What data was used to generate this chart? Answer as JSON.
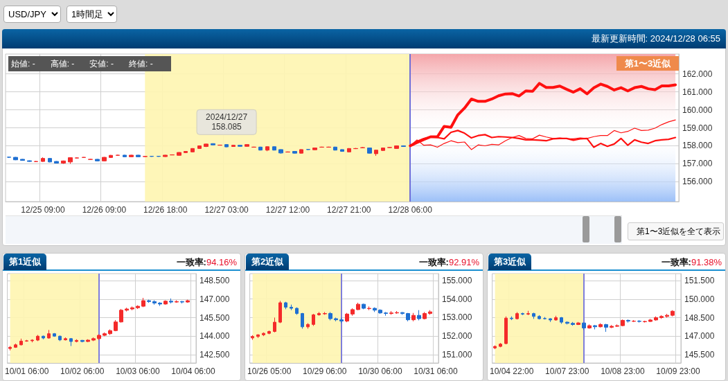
{
  "chart_data": [
    {
      "type": "candlestick",
      "title": "最新更新時間: 2024/12/28 06:55",
      "annotations": [
        "USD/JPY",
        "1時間足",
        "始値: -",
        "高値: -",
        "安値: -",
        "終値: -",
        "第1〜3近似",
        "第1〜3近似を全て表示",
        {
          "text": "2024/12/27\n158.085",
          "y": 158.085
        }
      ],
      "categories": [
        null,
        null,
        null,
        null,
        null,
        "12/25 09:00",
        null,
        null,
        null,
        null,
        null,
        null,
        null,
        null,
        "12/26 09:00",
        null,
        null,
        null,
        null,
        null,
        null,
        null,
        null,
        "12/26 18:00",
        null,
        null,
        null,
        null,
        null,
        null,
        null,
        null,
        "12/27 03:00",
        null,
        null,
        null,
        null,
        null,
        null,
        null,
        null,
        "12/27 12:00",
        null,
        null,
        null,
        null,
        null,
        null,
        null,
        null,
        "12/27 21:00",
        null,
        null,
        null,
        null,
        null,
        null,
        null,
        null,
        "12/28 06:00",
        null,
        null,
        null,
        null,
        null,
        null,
        null,
        null,
        null,
        null,
        null,
        null,
        null,
        null,
        null,
        null,
        null,
        null,
        null,
        null,
        null,
        null,
        null,
        null,
        null,
        null,
        null,
        null,
        null,
        null,
        null,
        null,
        null,
        null,
        null,
        null,
        null,
        null,
        null
      ],
      "series": [
        {
          "colors": [
            "#1e6fd2",
            "#1e6fd2",
            "#1e6fd2",
            "#1e6fd2",
            "#f42a2a",
            "#f42a2a",
            "#1e6fd2",
            "#1e6fd2",
            "#f42a2a",
            "#f42a2a",
            "#f42a2a",
            "#f42a2a",
            "#f42a2a",
            "#1e6fd2",
            "#f42a2a",
            "#f42a2a",
            "#f42a2a",
            "#1e6fd2",
            "#f42a2a",
            "#1e6fd2",
            "#f42a2a",
            "#1e6fd2",
            "#1e6fd2",
            "#f42a2a",
            "#f42a2a",
            "#f42a2a",
            "#f42a2a",
            "#f42a2a",
            "#f42a2a",
            "#f42a2a",
            "#1e6fd2",
            "#f42a2a",
            "#1e6fd2",
            "#f42a2a",
            "#1e6fd2",
            "#f42a2a",
            "#f42a2a",
            "#1e6fd2",
            "#f42a2a",
            "#1e6fd2",
            "#1e6fd2",
            "#f42a2a",
            "#1e6fd2",
            "#f42a2a",
            "#1e6fd2",
            "#f42a2a",
            "#f42a2a",
            "#f42a2a",
            "#1e6fd2",
            "#1e6fd2",
            "#f42a2a",
            "#f42a2a",
            "#f42a2a",
            "#1e6fd2",
            "#f42a2a",
            "#f42a2a",
            "#f42a2a",
            "#f42a2a",
            "#1e6fd2",
            null,
            null,
            null,
            null,
            null,
            null,
            null,
            null,
            null,
            null,
            null,
            null,
            null,
            null,
            null,
            null,
            null,
            null,
            null,
            null,
            null,
            null,
            null,
            null,
            null,
            null,
            null,
            null,
            null,
            null,
            null,
            null,
            null,
            null,
            null,
            null,
            null,
            null,
            null,
            null
          ],
          "ohlc": [
            [
              157.37,
              157.39,
              157.33,
              157.36
            ],
            [
              157.36,
              157.38,
              157.2,
              157.22
            ],
            [
              157.25,
              157.27,
              157.17,
              157.19
            ],
            [
              157.17,
              157.19,
              157.11,
              157.13
            ],
            [
              157.12,
              157.15,
              157.1,
              157.13
            ],
            [
              157.13,
              157.36,
              157.11,
              157.3
            ],
            [
              157.3,
              157.32,
              157.08,
              157.1
            ],
            [
              157.13,
              157.15,
              157.02,
              157.04
            ],
            [
              157.04,
              157.18,
              157.0,
              157.16
            ],
            [
              157.1,
              157.36,
              157.0,
              157.34
            ],
            [
              157.32,
              157.35,
              157.31,
              157.33
            ],
            [
              157.35,
              157.37,
              157.34,
              157.36
            ],
            [
              157.24,
              157.27,
              157.23,
              157.25
            ],
            [
              157.25,
              157.27,
              157.14,
              157.16
            ],
            [
              157.16,
              157.38,
              157.14,
              157.36
            ],
            [
              157.35,
              157.49,
              157.33,
              157.47
            ],
            [
              157.47,
              157.5,
              157.46,
              157.48
            ],
            [
              157.48,
              157.5,
              157.37,
              157.39
            ],
            [
              157.39,
              157.5,
              157.37,
              157.48
            ],
            [
              157.48,
              157.5,
              157.37,
              157.39
            ],
            [
              157.4,
              157.43,
              157.38,
              157.41
            ],
            [
              157.42,
              157.44,
              157.39,
              157.41
            ],
            [
              157.42,
              157.44,
              157.39,
              157.41
            ],
            [
              157.4,
              157.5,
              157.38,
              157.48
            ],
            [
              157.49,
              157.52,
              157.48,
              157.5
            ],
            [
              157.47,
              157.65,
              157.45,
              157.63
            ],
            [
              157.62,
              157.71,
              157.6,
              157.69
            ],
            [
              157.66,
              157.87,
              157.64,
              157.85
            ],
            [
              157.85,
              158.02,
              157.83,
              158.0
            ],
            [
              157.96,
              158.12,
              157.93,
              158.1
            ],
            [
              158.12,
              158.14,
              158.03,
              158.05
            ],
            [
              158.03,
              158.06,
              158.02,
              158.04
            ],
            [
              158.07,
              158.09,
              157.92,
              157.94
            ],
            [
              157.96,
              158.05,
              157.94,
              158.03
            ],
            [
              158.03,
              158.05,
              157.95,
              157.97
            ],
            [
              157.97,
              158.09,
              157.95,
              158.07
            ],
            [
              157.92,
              157.95,
              157.91,
              157.93
            ],
            [
              157.93,
              157.95,
              157.74,
              157.76
            ],
            [
              157.76,
              157.97,
              157.7,
              157.95
            ],
            [
              157.95,
              157.97,
              157.74,
              157.76
            ],
            [
              157.79,
              157.81,
              157.56,
              157.6
            ],
            [
              157.65,
              157.68,
              157.64,
              157.66
            ],
            [
              157.69,
              157.71,
              157.57,
              157.59
            ],
            [
              157.59,
              157.81,
              157.57,
              157.79
            ],
            [
              157.8,
              157.82,
              157.77,
              157.79
            ],
            [
              157.78,
              157.9,
              157.76,
              157.88
            ],
            [
              157.92,
              157.95,
              157.91,
              157.93
            ],
            [
              157.92,
              157.95,
              157.91,
              157.93
            ],
            [
              157.93,
              157.95,
              157.74,
              157.76
            ],
            [
              157.79,
              157.81,
              157.67,
              157.69
            ],
            [
              157.66,
              157.87,
              157.64,
              157.85
            ],
            [
              157.84,
              157.88,
              157.82,
              157.85
            ],
            [
              157.89,
              157.93,
              157.87,
              157.9
            ],
            [
              157.88,
              157.9,
              157.57,
              157.59
            ],
            [
              157.56,
              157.78,
              157.44,
              157.76
            ],
            [
              157.74,
              157.9,
              157.72,
              157.88
            ],
            [
              157.9,
              157.93,
              157.89,
              157.91
            ],
            [
              157.85,
              158.02,
              157.83,
              158.0
            ],
            [
              158.0,
              158.02,
              157.94,
              157.96
            ],
            null,
            null,
            null,
            null,
            null,
            null,
            null,
            null,
            null,
            null,
            null,
            null,
            null,
            null,
            null,
            null,
            null,
            null,
            null,
            null,
            null,
            null,
            null,
            null,
            null,
            null,
            null,
            null,
            null,
            null,
            null,
            null,
            null,
            null,
            null,
            null,
            null,
            null,
            null,
            null
          ]
        },
        {
          "type": "line",
          "color": "#ff1010",
          "values": [
            null,
            null,
            null,
            null,
            null,
            null,
            null,
            null,
            null,
            null,
            null,
            null,
            null,
            null,
            null,
            null,
            null,
            null,
            null,
            null,
            null,
            null,
            null,
            null,
            null,
            null,
            null,
            null,
            null,
            null,
            null,
            null,
            null,
            null,
            null,
            null,
            null,
            null,
            null,
            null,
            null,
            null,
            null,
            null,
            null,
            null,
            null,
            null,
            null,
            null,
            null,
            null,
            null,
            null,
            null,
            null,
            null,
            null,
            null,
            158.0,
            158.18,
            158.35,
            158.5,
            158.5,
            159.08,
            159.03,
            159.72,
            160.1,
            160.6,
            160.47,
            160.47,
            160.6,
            160.78,
            160.88,
            160.9,
            160.77,
            161.05,
            161.03,
            161.47,
            161.24,
            161.24,
            161.32,
            161.14,
            160.98,
            161.17,
            160.89,
            161.22,
            161.43,
            161.3,
            161.1,
            161.23,
            161.05,
            161.23,
            161.3,
            161.17,
            161.12,
            161.33,
            161.33,
            161.39
          ]
        },
        {
          "type": "line",
          "color": "#ff1010",
          "values": [
            null,
            null,
            null,
            null,
            null,
            null,
            null,
            null,
            null,
            null,
            null,
            null,
            null,
            null,
            null,
            null,
            null,
            null,
            null,
            null,
            null,
            null,
            null,
            null,
            null,
            null,
            null,
            null,
            null,
            null,
            null,
            null,
            null,
            null,
            null,
            null,
            null,
            null,
            null,
            null,
            null,
            null,
            null,
            null,
            null,
            null,
            null,
            null,
            null,
            null,
            null,
            null,
            null,
            null,
            null,
            null,
            null,
            null,
            null,
            158.0,
            158.25,
            158.4,
            158.49,
            158.46,
            158.39,
            158.75,
            158.85,
            158.7,
            158.44,
            158.57,
            158.62,
            158.46,
            158.51,
            158.49,
            158.46,
            158.41,
            158.33,
            158.33,
            158.31,
            158.28,
            158.39,
            158.41,
            158.41,
            158.31,
            158.39,
            158.41,
            157.92,
            158.13,
            157.97,
            158.1,
            158.41,
            158.03,
            158.33,
            158.2,
            158.13,
            158.28,
            158.33,
            158.36,
            158.46
          ]
        },
        {
          "type": "line",
          "color": "#ff1010",
          "values": [
            null,
            null,
            null,
            null,
            null,
            null,
            null,
            null,
            null,
            null,
            null,
            null,
            null,
            null,
            null,
            null,
            null,
            null,
            null,
            null,
            null,
            null,
            null,
            null,
            null,
            null,
            null,
            null,
            null,
            null,
            null,
            null,
            null,
            null,
            null,
            null,
            null,
            null,
            null,
            null,
            null,
            null,
            null,
            null,
            null,
            null,
            null,
            null,
            null,
            null,
            null,
            null,
            null,
            null,
            null,
            null,
            null,
            null,
            null,
            158.0,
            158.33,
            158.03,
            158.05,
            157.92,
            158.13,
            158.28,
            158.18,
            158.21,
            157.79,
            158.05,
            158.0,
            158.08,
            158.05,
            158.28,
            158.46,
            158.57,
            158.41,
            158.39,
            158.59,
            158.49,
            158.41,
            158.44,
            158.39,
            158.39,
            158.44,
            158.41,
            158.51,
            158.57,
            158.57,
            158.85,
            158.72,
            158.8,
            158.98,
            158.85,
            158.87,
            158.98,
            159.18,
            159.33,
            159.44
          ]
        }
      ],
      "marker": "none",
      "grid": true,
      "ylim": [
        154.9,
        163.1
      ],
      "yticks": [
        {
          "value": 156,
          "label": "156.000"
        },
        {
          "value": 157,
          "label": "157.000"
        },
        {
          "value": 158,
          "label": "158.000"
        },
        {
          "value": 159,
          "label": "159.000"
        },
        {
          "value": 160,
          "label": "160.000"
        },
        {
          "value": 161,
          "label": "161.000"
        },
        {
          "value": 162,
          "label": "162.000"
        }
      ],
      "ref_lines": [
        {
          "axis": "x",
          "value": "12/28 06:00",
          "color": "#6f6fd8"
        }
      ]
    },
    {
      "type": "candlestick",
      "title": "第1近似",
      "subtitle": "一致率:",
      "annotations": [
        "94.16%"
      ],
      "categories": [
        null,
        null,
        null,
        "10/01 06:00",
        null,
        null,
        null,
        null,
        null,
        null,
        null,
        null,
        null,
        "10/02 06:00",
        null,
        null,
        null,
        null,
        null,
        null,
        null,
        null,
        null,
        "10/03 06:00",
        null,
        null,
        null,
        null,
        null,
        null,
        null,
        null,
        null,
        "10/04 06:00"
      ],
      "colors": [
        "#f42a2a",
        "#f42a2a",
        "#f42a2a",
        "#f42a2a",
        "#f42a2a",
        "#f42a2a",
        "#1e6fd2",
        "#f42a2a",
        "#1e6fd2",
        "#1e6fd2",
        "#f42a2a",
        "#1e6fd2",
        "#f42a2a",
        "#1e6fd2",
        "#f42a2a",
        "#f42a2a",
        "#f42a2a",
        "#f42a2a",
        "#f42a2a",
        "#f42a2a",
        "#f42a2a",
        "#f42a2a",
        "#f42a2a",
        "#f42a2a",
        "#f42a2a",
        "#1e6fd2",
        "#1e6fd2",
        "#1e6fd2",
        "#f42a2a",
        "#1e6fd2",
        "#f42a2a",
        "#1e6fd2",
        "#f42a2a",
        null
      ],
      "ohlc": [
        [
          143.0,
          143.2,
          142.85,
          143.1
        ],
        [
          143.1,
          143.4,
          143.05,
          143.3
        ],
        [
          143.3,
          143.8,
          143.25,
          143.6
        ],
        [
          143.6,
          143.7,
          143.55,
          143.63
        ],
        [
          143.63,
          143.75,
          143.5,
          143.68
        ],
        [
          143.68,
          144.1,
          143.6,
          144.0
        ],
        [
          144.0,
          144.05,
          143.75,
          143.85
        ],
        [
          143.85,
          144.5,
          143.8,
          144.2
        ],
        [
          144.2,
          144.25,
          143.95,
          144.0
        ],
        [
          144.0,
          144.05,
          143.6,
          143.7
        ],
        [
          143.7,
          143.9,
          143.65,
          143.8
        ],
        [
          143.8,
          143.85,
          143.2,
          143.57
        ],
        [
          143.57,
          143.75,
          143.5,
          143.66
        ],
        [
          143.66,
          143.7,
          143.5,
          143.57
        ],
        [
          143.57,
          143.75,
          143.52,
          143.68
        ],
        [
          143.68,
          143.9,
          143.6,
          143.8
        ],
        [
          143.8,
          144.15,
          143.7,
          144.07
        ],
        [
          144.07,
          144.3,
          144.0,
          144.2
        ],
        [
          144.2,
          144.55,
          144.1,
          144.45
        ],
        [
          144.45,
          145.3,
          144.4,
          145.15
        ],
        [
          145.15,
          146.2,
          145.1,
          146.1
        ],
        [
          146.1,
          146.3,
          146.0,
          146.2
        ],
        [
          146.2,
          146.4,
          146.1,
          146.3
        ],
        [
          146.3,
          146.5,
          146.2,
          146.42
        ],
        [
          146.42,
          147.1,
          146.35,
          146.87
        ],
        [
          146.87,
          146.95,
          146.7,
          146.8
        ],
        [
          146.8,
          146.9,
          146.55,
          146.68
        ],
        [
          146.68,
          146.75,
          146.45,
          146.6
        ],
        [
          146.6,
          146.9,
          146.55,
          146.83
        ],
        [
          146.83,
          147.05,
          146.65,
          146.76
        ],
        [
          146.76,
          146.9,
          146.7,
          146.8
        ],
        [
          146.8,
          146.85,
          146.65,
          146.76
        ],
        [
          146.76,
          146.95,
          146.7,
          146.87
        ],
        null
      ],
      "grid": true,
      "ylim": [
        141.83,
        149.06
      ],
      "yticks": [
        {
          "value": 142.5,
          "label": "142.500"
        },
        {
          "value": 144,
          "label": "144.000"
        },
        {
          "value": 145.5,
          "label": "145.500"
        },
        {
          "value": 147,
          "label": "147.000"
        },
        {
          "value": 148.5,
          "label": "148.500"
        }
      ]
    },
    {
      "type": "candlestick",
      "title": "第2近似",
      "subtitle": "一致率:",
      "annotations": [
        "92.91%"
      ],
      "categories": [
        null,
        null,
        null,
        "10/26 05:00",
        null,
        null,
        null,
        null,
        null,
        null,
        null,
        null,
        null,
        "10/29 06:00",
        null,
        null,
        null,
        null,
        null,
        null,
        null,
        null,
        null,
        "10/30 06:00",
        null,
        null,
        null,
        null,
        null,
        null,
        null,
        null,
        null,
        "10/31 06:00"
      ],
      "colors": [
        "#f42a2a",
        "#f42a2a",
        "#f42a2a",
        "#f42a2a",
        "#f42a2a",
        "#f42a2a",
        "#1e6fd2",
        "#1e6fd2",
        "#1e6fd2",
        "#1e6fd2",
        "#f42a2a",
        "#f42a2a",
        "#f42a2a",
        "#f42a2a",
        "#1e6fd2",
        "#1e6fd2",
        "#1e6fd2",
        "#f42a2a",
        "#f42a2a",
        "#f42a2a",
        "#1e6fd2",
        "#f42a2a",
        "#1e6fd2",
        "#1e6fd2",
        "#1e6fd2",
        "#f42a2a",
        "#f42a2a",
        "#1e6fd2",
        "#1e6fd2",
        "#f42a2a",
        "#1e6fd2",
        "#f42a2a",
        "#f42a2a",
        null
      ],
      "ohlc": [
        [
          151.9,
          152.05,
          151.8,
          151.98
        ],
        [
          151.98,
          152.1,
          151.9,
          152.07
        ],
        [
          152.07,
          152.2,
          152.0,
          152.15
        ],
        [
          152.15,
          152.3,
          152.1,
          152.25
        ],
        [
          152.25,
          153.0,
          152.2,
          152.75
        ],
        [
          152.75,
          153.9,
          152.7,
          153.8
        ],
        [
          153.8,
          153.85,
          153.45,
          153.56
        ],
        [
          153.56,
          153.7,
          153.4,
          153.5
        ],
        [
          153.5,
          153.55,
          153.15,
          153.22
        ],
        [
          153.22,
          153.25,
          152.4,
          152.5
        ],
        [
          152.5,
          152.7,
          152.4,
          152.63
        ],
        [
          152.63,
          153.2,
          152.55,
          153.15
        ],
        [
          153.15,
          153.3,
          153.1,
          153.22
        ],
        [
          153.2,
          153.3,
          153.15,
          153.22
        ],
        [
          153.22,
          153.3,
          152.85,
          152.94
        ],
        [
          152.94,
          153.0,
          152.8,
          152.88
        ],
        [
          152.88,
          153.0,
          152.7,
          152.81
        ],
        [
          152.81,
          153.25,
          152.75,
          153.19
        ],
        [
          153.19,
          153.5,
          153.1,
          153.43
        ],
        [
          153.43,
          153.8,
          153.4,
          153.72
        ],
        [
          153.72,
          153.75,
          153.45,
          153.5
        ],
        [
          153.48,
          153.6,
          153.4,
          153.5
        ],
        [
          153.5,
          153.55,
          153.3,
          153.4
        ],
        [
          153.4,
          153.45,
          153.2,
          153.25
        ],
        [
          153.25,
          153.3,
          153.1,
          153.22
        ],
        [
          153.22,
          153.35,
          153.15,
          153.25
        ],
        [
          153.25,
          153.35,
          153.2,
          153.27
        ],
        [
          153.27,
          153.3,
          153.15,
          153.22
        ],
        [
          153.22,
          153.25,
          152.8,
          152.88
        ],
        [
          152.88,
          153.25,
          152.8,
          153.12
        ],
        [
          153.12,
          153.4,
          152.85,
          152.94
        ],
        [
          152.94,
          153.3,
          152.9,
          153.22
        ],
        [
          153.22,
          153.4,
          153.15,
          153.31
        ],
        null
      ],
      "grid": true,
      "ylim": [
        150.55,
        155.37
      ],
      "yticks": [
        {
          "value": 151,
          "label": "151.000"
        },
        {
          "value": 152,
          "label": "152.000"
        },
        {
          "value": 153,
          "label": "153.000"
        },
        {
          "value": 154,
          "label": "154.000"
        },
        {
          "value": 155,
          "label": "155.000"
        }
      ]
    },
    {
      "type": "candlestick",
      "title": "第3近似",
      "subtitle": "一致率:",
      "annotations": [
        "91.38%"
      ],
      "categories": [
        null,
        null,
        null,
        "10/04 22:00",
        null,
        null,
        null,
        null,
        null,
        null,
        null,
        null,
        null,
        "10/07 23:00",
        null,
        null,
        null,
        null,
        null,
        null,
        null,
        null,
        null,
        "10/08 23:00",
        null,
        null,
        null,
        null,
        null,
        null,
        null,
        null,
        null,
        "10/09 23:00"
      ],
      "colors": [
        "#f42a2a",
        "#f42a2a",
        "#f42a2a",
        "#1e6fd2",
        "#f42a2a",
        "#1e6fd2",
        "#f42a2a",
        "#1e6fd2",
        "#1e6fd2",
        "#1e6fd2",
        "#1e6fd2",
        "#f42a2a",
        "#1e6fd2",
        "#1e6fd2",
        "#1e6fd2",
        "#f42a2a",
        "#1e6fd2",
        "#f42a2a",
        "#1e6fd2",
        "#f42a2a",
        "#1e6fd2",
        "#f42a2a",
        "#f42a2a",
        "#f42a2a",
        "#1e6fd2",
        "#f42a2a",
        "#1e6fd2",
        "#f42a2a",
        "#f42a2a",
        "#f42a2a",
        "#f42a2a",
        "#f42a2a",
        "#f42a2a",
        null
      ],
      "ohlc": [
        [
          146.05,
          146.25,
          145.95,
          146.17
        ],
        [
          146.17,
          146.45,
          146.1,
          146.36
        ],
        [
          146.4,
          148.6,
          146.35,
          148.46
        ],
        [
          148.46,
          148.6,
          148.3,
          148.41
        ],
        [
          148.41,
          148.95,
          148.35,
          148.83
        ],
        [
          148.83,
          148.9,
          148.7,
          148.78
        ],
        [
          148.78,
          149.05,
          148.7,
          148.83
        ],
        [
          148.83,
          148.9,
          148.4,
          148.6
        ],
        [
          148.6,
          148.7,
          148.35,
          148.41
        ],
        [
          148.43,
          148.55,
          148.35,
          148.41
        ],
        [
          148.41,
          148.45,
          148.15,
          148.31
        ],
        [
          148.31,
          148.65,
          148.25,
          148.5
        ],
        [
          148.5,
          148.55,
          148.0,
          148.13
        ],
        [
          148.13,
          148.2,
          147.95,
          148.04
        ],
        [
          148.04,
          148.15,
          147.85,
          147.94
        ],
        [
          147.94,
          148.15,
          147.9,
          148.07
        ],
        [
          148.07,
          148.1,
          147.5,
          147.66
        ],
        [
          147.66,
          147.95,
          147.6,
          147.85
        ],
        [
          147.85,
          147.9,
          147.55,
          147.76
        ],
        [
          147.76,
          148.05,
          147.7,
          147.94
        ],
        [
          147.94,
          148.0,
          147.35,
          147.72
        ],
        [
          147.72,
          147.9,
          147.65,
          147.8
        ],
        [
          147.8,
          147.95,
          147.75,
          147.85
        ],
        [
          147.85,
          148.35,
          147.8,
          148.28
        ],
        [
          148.28,
          148.35,
          148.1,
          148.22
        ],
        [
          148.2,
          148.3,
          148.15,
          148.22
        ],
        [
          148.22,
          148.3,
          148.1,
          148.19
        ],
        [
          148.17,
          148.25,
          148.1,
          148.19
        ],
        [
          148.19,
          148.4,
          148.15,
          148.31
        ],
        [
          148.31,
          148.6,
          148.25,
          148.5
        ],
        [
          148.5,
          148.7,
          148.4,
          148.6
        ],
        [
          148.6,
          148.8,
          148.5,
          148.69
        ],
        [
          148.69,
          149.1,
          148.6,
          149.02
        ],
        null
      ],
      "grid": true,
      "ylim": [
        144.83,
        152.06
      ],
      "yticks": [
        {
          "value": 145.5,
          "label": "145.500"
        },
        {
          "value": 147,
          "label": "147.000"
        },
        {
          "value": 148.5,
          "label": "148.500"
        },
        {
          "value": 150,
          "label": "150.000"
        },
        {
          "value": 151.5,
          "label": "151.500"
        }
      ]
    }
  ]
}
